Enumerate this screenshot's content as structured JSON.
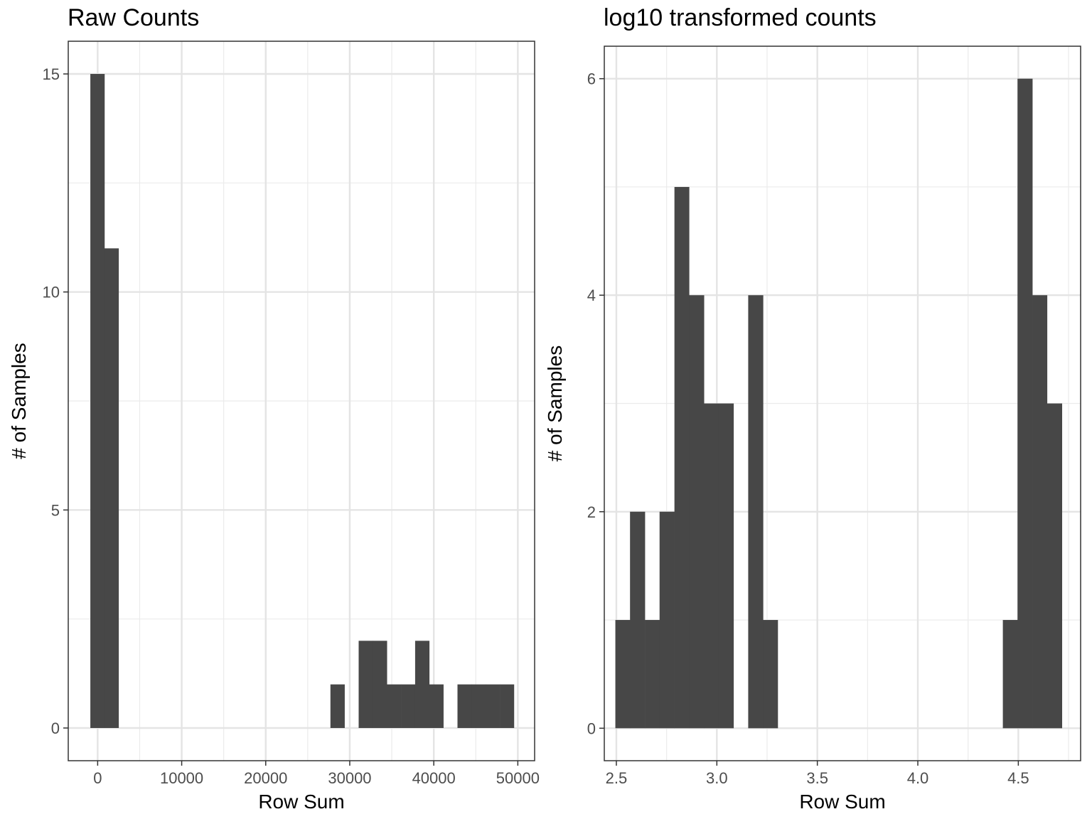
{
  "chart_data": [
    {
      "type": "bar",
      "title": "Raw Counts",
      "xlabel": "Row Sum",
      "ylabel": "# of Samples",
      "xlim": [
        -3500,
        52000
      ],
      "ylim": [
        -0.75,
        15.75
      ],
      "xticks": [
        0,
        10000,
        20000,
        30000,
        40000,
        50000
      ],
      "xtick_labels": [
        "0",
        "10000",
        "20000",
        "30000",
        "40000",
        "50000"
      ],
      "yticks": [
        0,
        5,
        10,
        15
      ],
      "ytick_labels": [
        "0",
        "5",
        "10",
        "15"
      ],
      "grid": true,
      "bins": [
        {
          "x0": -870,
          "x1": 810,
          "count": 15
        },
        {
          "x0": 810,
          "x1": 2490,
          "count": 11
        },
        {
          "x0": 27700,
          "x1": 29380,
          "count": 1
        },
        {
          "x0": 31060,
          "x1": 32740,
          "count": 2
        },
        {
          "x0": 32740,
          "x1": 34420,
          "count": 2
        },
        {
          "x0": 34420,
          "x1": 36100,
          "count": 1
        },
        {
          "x0": 36100,
          "x1": 37780,
          "count": 1
        },
        {
          "x0": 37780,
          "x1": 39460,
          "count": 2
        },
        {
          "x0": 39460,
          "x1": 41140,
          "count": 1
        },
        {
          "x0": 42820,
          "x1": 44500,
          "count": 1
        },
        {
          "x0": 44500,
          "x1": 46180,
          "count": 1
        },
        {
          "x0": 46180,
          "x1": 47860,
          "count": 1
        },
        {
          "x0": 47860,
          "x1": 49540,
          "count": 1
        }
      ],
      "bar_color": "#474747"
    },
    {
      "type": "bar",
      "title": "log10 transformed counts",
      "xlabel": "Row Sum",
      "ylabel": "# of Samples",
      "xlim": [
        2.44,
        4.81
      ],
      "ylim": [
        -0.3,
        6.3
      ],
      "xticks": [
        2.5,
        3.0,
        3.5,
        4.0,
        4.5
      ],
      "xtick_labels": [
        "2.5",
        "3.0",
        "3.5",
        "4.0",
        "4.5"
      ],
      "yticks": [
        0,
        2,
        4,
        6
      ],
      "ytick_labels": [
        "0",
        "2",
        "4",
        "6"
      ],
      "grid": true,
      "bins": [
        {
          "x0": 2.495,
          "x1": 2.568,
          "count": 1
        },
        {
          "x0": 2.568,
          "x1": 2.642,
          "count": 2
        },
        {
          "x0": 2.642,
          "x1": 2.715,
          "count": 1
        },
        {
          "x0": 2.715,
          "x1": 2.789,
          "count": 2
        },
        {
          "x0": 2.789,
          "x1": 2.862,
          "count": 5
        },
        {
          "x0": 2.862,
          "x1": 2.936,
          "count": 4
        },
        {
          "x0": 2.936,
          "x1": 3.009,
          "count": 3
        },
        {
          "x0": 3.009,
          "x1": 3.083,
          "count": 3
        },
        {
          "x0": 3.156,
          "x1": 3.23,
          "count": 4
        },
        {
          "x0": 3.23,
          "x1": 3.303,
          "count": 1
        },
        {
          "x0": 4.423,
          "x1": 4.496,
          "count": 1
        },
        {
          "x0": 4.496,
          "x1": 4.57,
          "count": 6
        },
        {
          "x0": 4.57,
          "x1": 4.643,
          "count": 4
        },
        {
          "x0": 4.643,
          "x1": 4.717,
          "count": 3
        }
      ],
      "bar_color": "#474747"
    }
  ]
}
